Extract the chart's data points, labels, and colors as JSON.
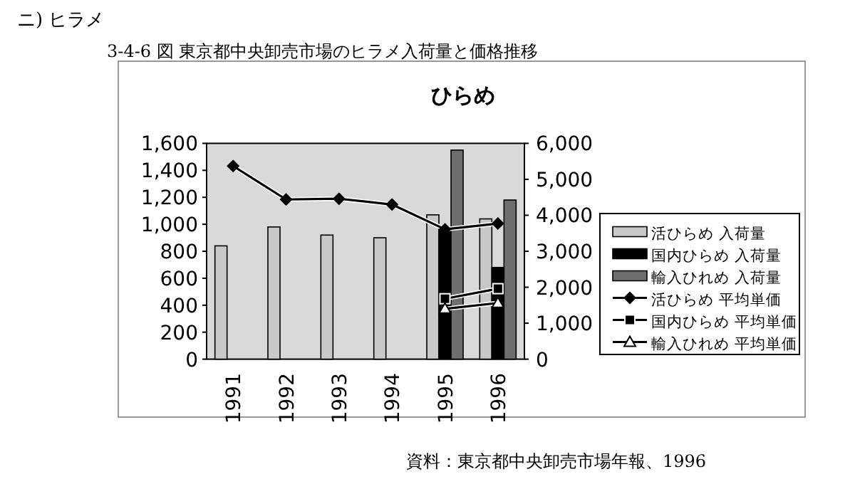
{
  "chart_data": {
    "type": "bar",
    "title": "ひらめ",
    "annotations": [
      "ニ) ヒラメ",
      "3-4-6 図 東京都中央卸売市場のヒラメ入荷量と価格推移",
      "資料：東京都中央卸売市場年報、1996"
    ],
    "categories": [
      "1991",
      "1992",
      "1993",
      "1994",
      "1995",
      "1996"
    ],
    "series": [
      {
        "name": "活ひらめ 入荷量",
        "color": "#c8c8c8",
        "values": [
          840,
          980,
          920,
          900,
          1070,
          1040
        ]
      },
      {
        "name": "国内ひらめ 入荷量",
        "color": "#000000",
        "values": [
          null,
          null,
          null,
          null,
          970,
          680
        ]
      },
      {
        "name": "輸入ひれめ 入荷量",
        "color": "#6e6e6e",
        "values": [
          null,
          null,
          null,
          null,
          1550,
          1180
        ]
      },
      {
        "name": "活ひらめ 平均単価",
        "type": "line",
        "axis": "y2",
        "marker": "diamond",
        "color": "#000000",
        "values": [
          5370,
          4440,
          4460,
          4300,
          3610,
          3770
        ]
      },
      {
        "name": "国内ひらめ 平均単価",
        "type": "line",
        "axis": "y2",
        "marker": "square",
        "color": "#000000",
        "values": [
          null,
          null,
          null,
          null,
          1680,
          1960
        ]
      },
      {
        "name": "輸入ひれめ 平均単価",
        "type": "line",
        "axis": "y2",
        "marker": "triangle",
        "color": "#000000",
        "values": [
          null,
          null,
          null,
          null,
          1400,
          1560
        ]
      }
    ],
    "ylim": [
      0,
      1600
    ],
    "yticks": [
      0,
      200,
      400,
      600,
      800,
      {
        "value": 1000,
        "label": "1,000"
      },
      {
        "value": 1200,
        "label": "1,200"
      },
      {
        "value": 1400,
        "label": "1,400"
      },
      {
        "value": 1600,
        "label": "1,600"
      }
    ],
    "y2lim": [
      0,
      6000
    ],
    "y2ticks": [
      0,
      {
        "value": 1000,
        "label": "1,000"
      },
      {
        "value": 2000,
        "label": "2,000"
      },
      {
        "value": 3000,
        "label": "3,000"
      },
      {
        "value": 4000,
        "label": "4,000"
      },
      {
        "value": 5000,
        "label": "5,000"
      },
      {
        "value": 6000,
        "label": "6,000"
      }
    ],
    "grid": false,
    "legend": "right"
  }
}
